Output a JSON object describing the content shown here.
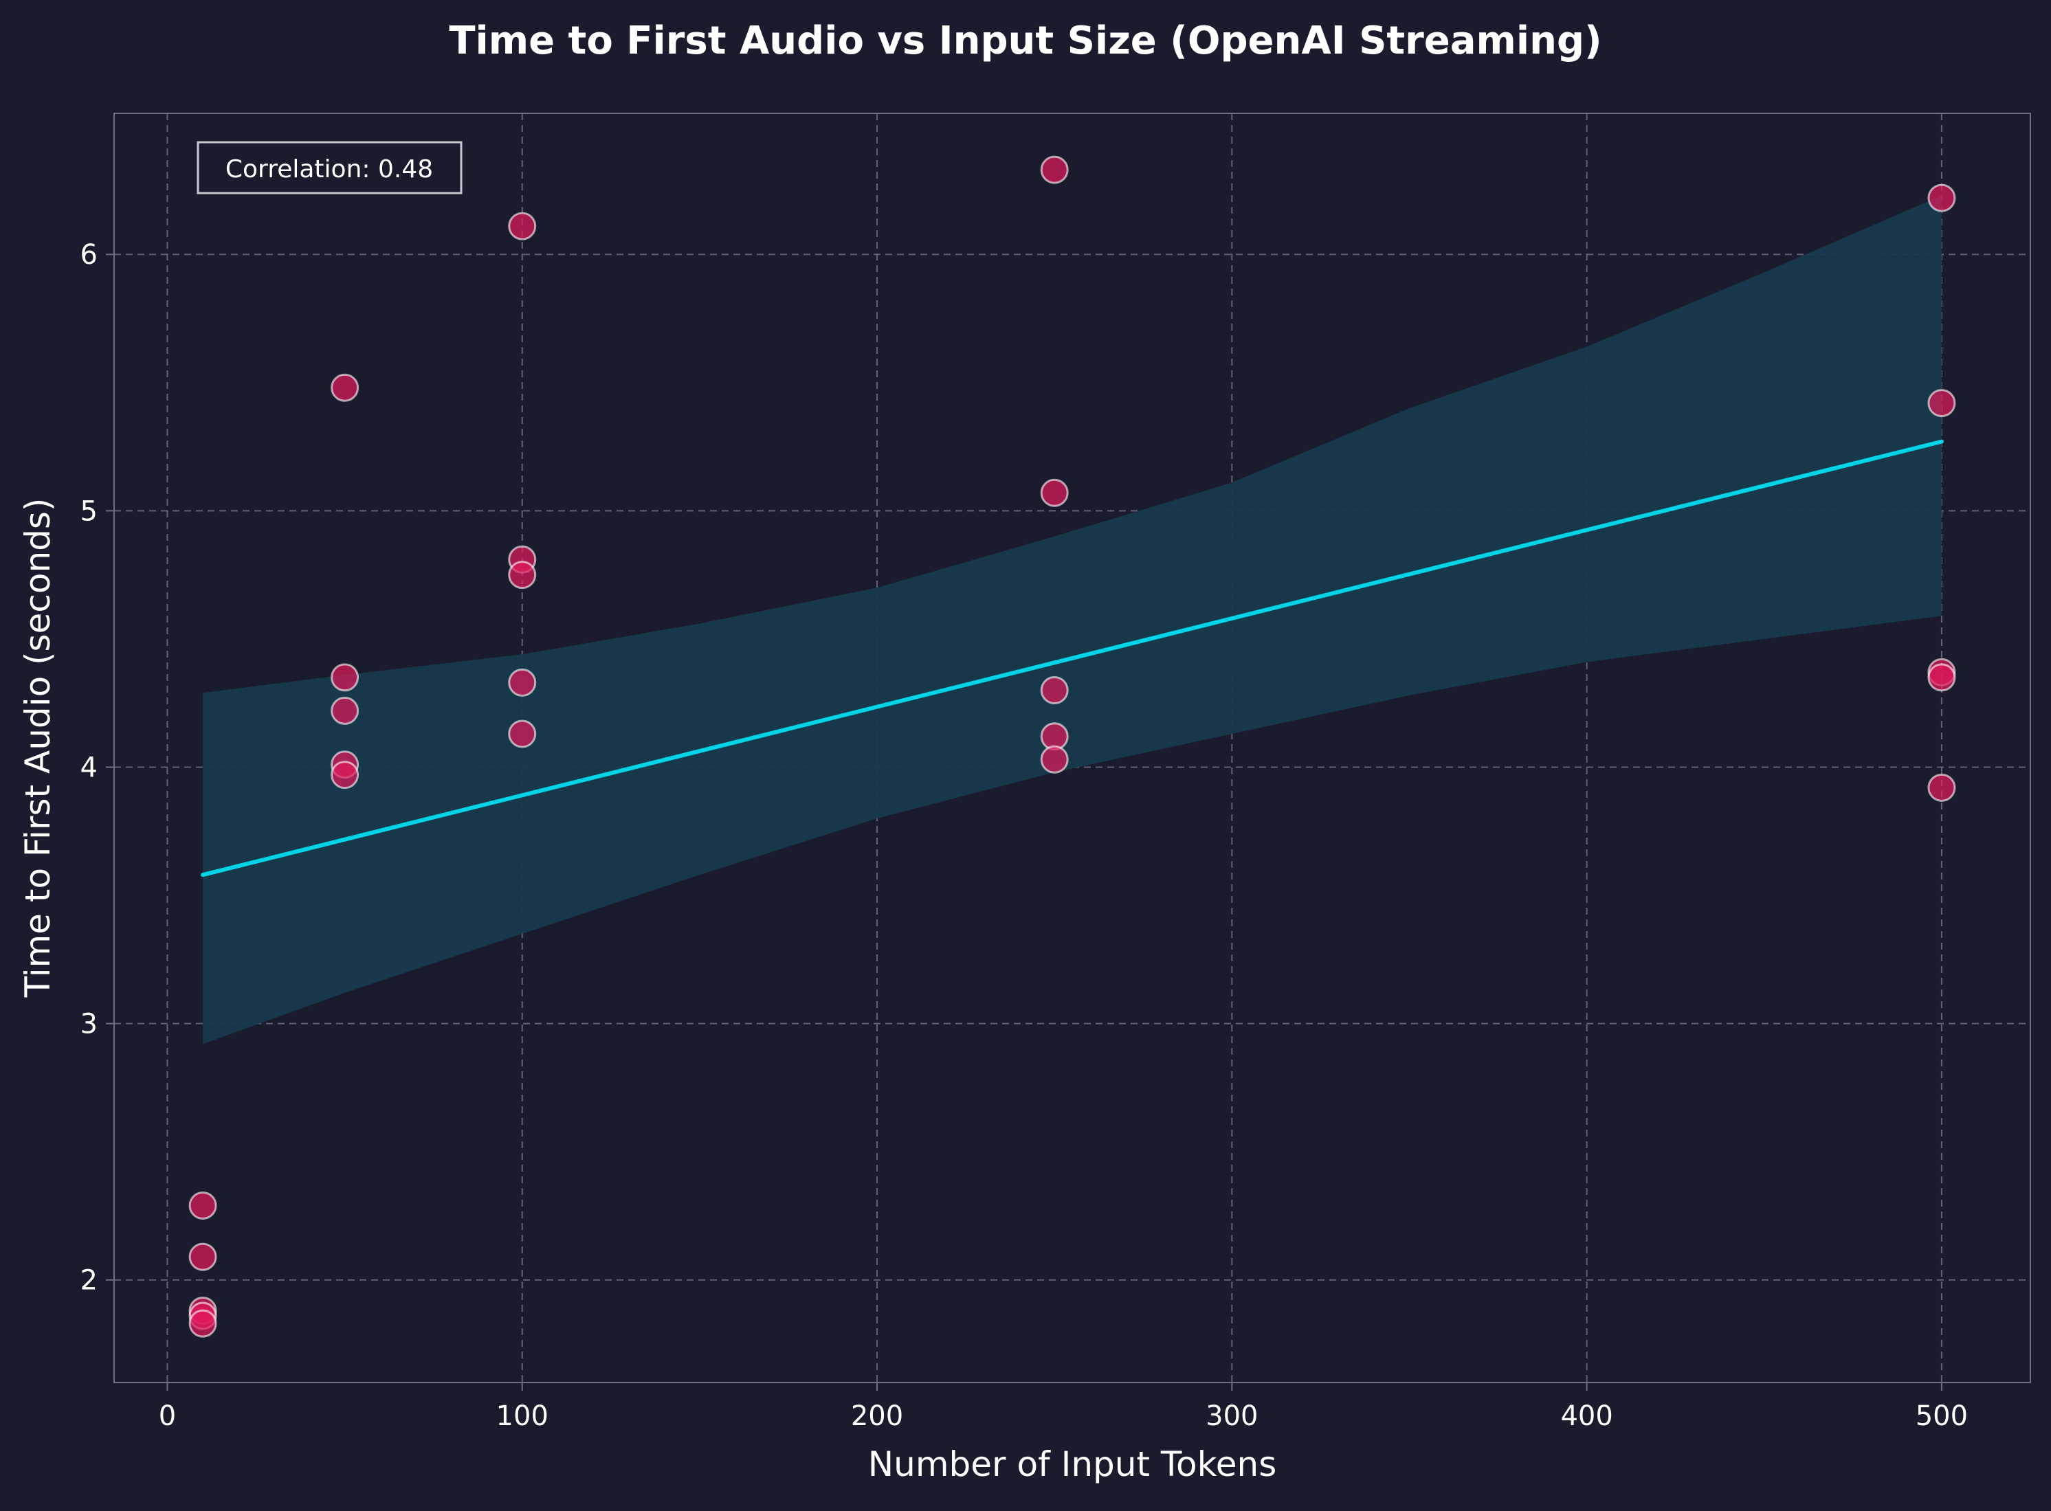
{
  "colors": {
    "background": "#1b1b2e",
    "axes_edge": "#6f6f80",
    "grid": "#6f6f80",
    "text": "#ffffff",
    "point_fill": "#e3195d",
    "point_edge": "#ffffff",
    "fit_line": "#00d4e6",
    "band": "#17394c",
    "annotation_border": "#c8c8d0"
  },
  "chart_data": {
    "type": "scatter",
    "title": "Time to First Audio vs Input Size (OpenAI Streaming)",
    "xlabel": "Number of Input Tokens",
    "ylabel": "Time to First Audio (seconds)",
    "xlim": [
      -15,
      525
    ],
    "ylim": [
      1.6,
      6.55
    ],
    "x_ticks": [
      0,
      100,
      200,
      300,
      400,
      500
    ],
    "y_ticks": [
      2,
      3,
      4,
      5,
      6
    ],
    "grid": true,
    "annotation": "Correlation: 0.48",
    "annotation_position": "top-left",
    "points": [
      {
        "x": 10,
        "y": 2.29
      },
      {
        "x": 10,
        "y": 2.09
      },
      {
        "x": 10,
        "y": 1.88
      },
      {
        "x": 10,
        "y": 1.86
      },
      {
        "x": 10,
        "y": 1.83
      },
      {
        "x": 50,
        "y": 5.48
      },
      {
        "x": 50,
        "y": 4.35
      },
      {
        "x": 50,
        "y": 4.22
      },
      {
        "x": 50,
        "y": 4.01
      },
      {
        "x": 50,
        "y": 3.97
      },
      {
        "x": 100,
        "y": 6.11
      },
      {
        "x": 100,
        "y": 4.81
      },
      {
        "x": 100,
        "y": 4.75
      },
      {
        "x": 100,
        "y": 4.33
      },
      {
        "x": 100,
        "y": 4.13
      },
      {
        "x": 250,
        "y": 6.33
      },
      {
        "x": 250,
        "y": 5.07
      },
      {
        "x": 250,
        "y": 4.3
      },
      {
        "x": 250,
        "y": 4.12
      },
      {
        "x": 250,
        "y": 4.03
      },
      {
        "x": 500,
        "y": 6.22
      },
      {
        "x": 500,
        "y": 5.42
      },
      {
        "x": 500,
        "y": 4.37
      },
      {
        "x": 500,
        "y": 4.35
      },
      {
        "x": 500,
        "y": 3.92
      }
    ],
    "fit_line": {
      "x": [
        10,
        500
      ],
      "y": [
        3.58,
        5.27
      ]
    },
    "confidence_band": {
      "x": [
        10,
        50,
        100,
        150,
        200,
        250,
        300,
        350,
        400,
        450,
        500
      ],
      "upper": [
        4.29,
        4.36,
        4.44,
        4.56,
        4.7,
        4.9,
        5.11,
        5.4,
        5.64,
        5.93,
        6.23
      ],
      "lower": [
        2.92,
        3.12,
        3.35,
        3.58,
        3.8,
        3.98,
        4.13,
        4.28,
        4.41,
        4.5,
        4.59
      ]
    }
  }
}
